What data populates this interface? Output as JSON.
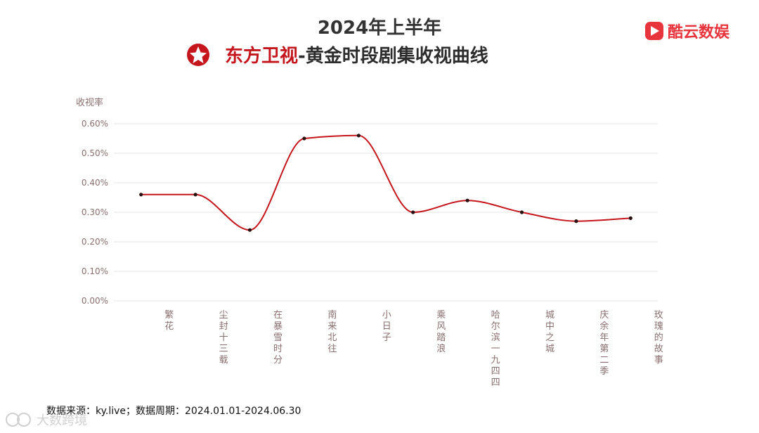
{
  "header": {
    "title_line1": "2024年上半年",
    "channel_name": "东方卫视",
    "title_line2_suffix": "-黄金时段剧集收视曲线"
  },
  "brand": {
    "logo_text": "酷云数娱",
    "logo_color": "#e8343c"
  },
  "footer": {
    "source_text": "数据来源：ky.live；数据周期：2024.01.01-2024.06.30"
  },
  "watermark": {
    "text": "大数跨境"
  },
  "colors": {
    "line": "#c4161c",
    "point": "#2a1010",
    "channel": "#c4161c"
  },
  "chart_data": {
    "type": "line",
    "ylabel": "收视率",
    "xlabel": "",
    "categories": [
      "繁花",
      "尘封十三载",
      "在暴雪时分",
      "南来北往",
      "小日子",
      "乘风踏浪",
      "哈尔滨一九四四",
      "城中之城",
      "庆余年第二季",
      "玫瑰的故事"
    ],
    "series": [
      {
        "values": [
          0.36,
          0.36,
          0.24,
          0.55,
          0.56,
          0.3,
          0.34,
          0.3,
          0.27,
          0.28
        ]
      }
    ],
    "ylim": [
      0,
      0.6
    ],
    "yticks": [
      "0.00%",
      "0.10%",
      "0.20%",
      "0.30%",
      "0.40%",
      "0.50%",
      "0.60%"
    ],
    "ytick_values": [
      0,
      0.1,
      0.2,
      0.3,
      0.4,
      0.5,
      0.6
    ],
    "grid": true,
    "smooth": true
  }
}
